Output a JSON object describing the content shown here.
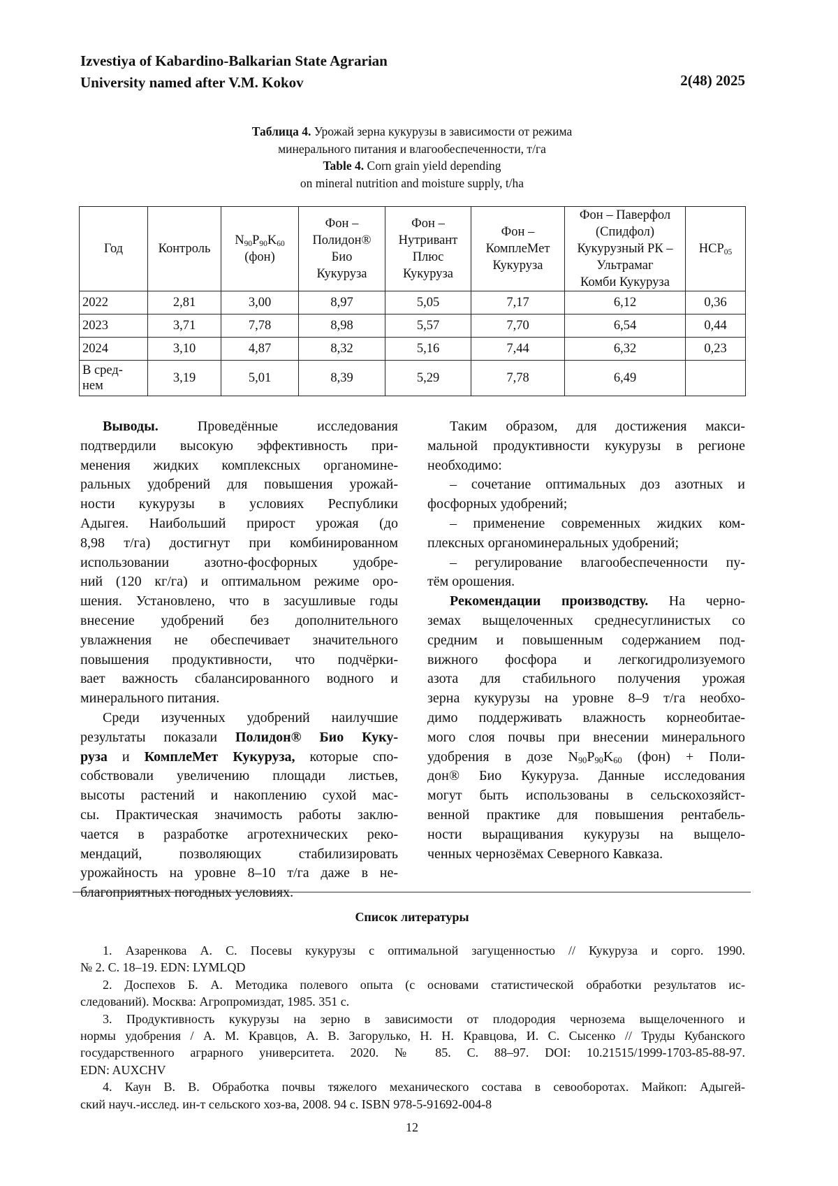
{
  "header": {
    "journal_line1": "Izvestiya of Kabardino-Balkarian State Agrarian",
    "journal_line2": "University named after V.M. Kokov",
    "issue": "2(48) 2025"
  },
  "caption": {
    "lines": [
      [
        {
          "text": "Таблица 4.",
          "style": "bold"
        },
        {
          "text": " Урожай зерна кукурузы в зависимости от режима",
          "style": ""
        }
      ],
      [
        {
          "text": "минерального питания и влагообеспеченности, т/га",
          "style": ""
        }
      ],
      [
        {
          "text": "Table 4.",
          "style": "bold"
        },
        {
          "text": " Corn grain yield depending",
          "style": ""
        }
      ],
      [
        {
          "text": "on mineral nutrition and moisture supply, t/ha",
          "style": ""
        }
      ]
    ]
  },
  "table": {
    "headers": [
      [
        {
          "text": "Год",
          "style": ""
        }
      ],
      [
        {
          "text": "Контроль",
          "style": ""
        }
      ],
      [
        {
          "text": "N",
          "style": ""
        },
        {
          "text": "90",
          "style": "sub"
        },
        {
          "text": "P",
          "style": ""
        },
        {
          "text": "90",
          "style": "sub"
        },
        {
          "text": "K",
          "style": ""
        },
        {
          "text": "60",
          "style": "sub"
        },
        {
          "text": "\n(фон)",
          "style": ""
        }
      ],
      [
        {
          "text": "Фон –\nПолидон®\nБио\nКукуруза",
          "style": ""
        }
      ],
      [
        {
          "text": "Фон –\nНутривант\nПлюс\nКукуруза",
          "style": ""
        }
      ],
      [
        {
          "text": "Фон –\nКомплеМет\nКукуруза",
          "style": ""
        }
      ],
      [
        {
          "text": "Фон – Паверфол\n(Спидфол)\nКукурузный РК –\nУльтрамаг\nКомби Кукуруза",
          "style": ""
        }
      ],
      [
        {
          "text": "НСР",
          "style": ""
        },
        {
          "text": "05",
          "style": "sub"
        }
      ]
    ],
    "rows": [
      [
        "2022",
        "2,81",
        "3,00",
        "8,97",
        "5,05",
        "7,17",
        "6,12",
        "0,36"
      ],
      [
        "2023",
        "3,71",
        "7,78",
        "8,98",
        "5,57",
        "7,70",
        "6,54",
        "0,44"
      ],
      [
        "2024",
        "3,10",
        "4,87",
        "8,32",
        "5,16",
        "7,44",
        "6,32",
        "0,23"
      ],
      [
        "В сред-\nнем",
        "3,19",
        "5,01",
        "8,39",
        "5,29",
        "7,78",
        "6,49",
        ""
      ]
    ]
  },
  "left_column": {
    "paragraphs": [
      {
        "lines": [
          [
            {
              "text": "Выводы.",
              "style": "bold"
            },
            {
              "text": " Проведённые исследования",
              "style": ""
            }
          ],
          [
            {
              "text": "подтвердили высокую эффективность при-",
              "style": ""
            }
          ],
          [
            {
              "text": "менения жидких комплексных органомине-",
              "style": ""
            }
          ],
          [
            {
              "text": "ральных удобрений для повышения урожай-",
              "style": ""
            }
          ],
          [
            {
              "text": "ности кукурузы в условиях Республики",
              "style": ""
            }
          ],
          [
            {
              "text": "Адыгея. Наибольший прирост урожая (до",
              "style": ""
            }
          ],
          [
            {
              "text": "8,98 т/га) достигнут при комбинированном",
              "style": ""
            }
          ],
          [
            {
              "text": "использовании азотно-фосфорных удобре-",
              "style": ""
            }
          ],
          [
            {
              "text": "ний (120 кг/га) и оптимальном режиме оро-",
              "style": ""
            }
          ],
          [
            {
              "text": "шения. Установлено, что в засушливые годы",
              "style": ""
            }
          ],
          [
            {
              "text": "внесение удобрений без дополнительного",
              "style": ""
            }
          ],
          [
            {
              "text": "увлажнения не обеспечивает значительного",
              "style": ""
            }
          ],
          [
            {
              "text": "повышения продуктивности, что подчёрки-",
              "style": ""
            }
          ],
          [
            {
              "text": "вает важность сбалансированного водного и",
              "style": ""
            }
          ],
          [
            {
              "text": "минерального питания.",
              "style": ""
            }
          ]
        ]
      },
      {
        "lines": [
          [
            {
              "text": "Среди изученных удобрений наилучшие",
              "style": ""
            }
          ],
          [
            {
              "text": "результаты показали ",
              "style": ""
            },
            {
              "text": "Полидон® Био Куку-",
              "style": "bold"
            }
          ],
          [
            {
              "text": "руза",
              "style": "bold"
            },
            {
              "text": " и ",
              "style": ""
            },
            {
              "text": "КомплеМет Кукуруза,",
              "style": "bold"
            },
            {
              "text": " которые спо-",
              "style": ""
            }
          ],
          [
            {
              "text": "собствовали увеличению площади листьев,",
              "style": ""
            }
          ],
          [
            {
              "text": "высоты растений и накоплению сухой мас-",
              "style": ""
            }
          ],
          [
            {
              "text": "сы. Практическая значимость работы заклю-",
              "style": ""
            }
          ],
          [
            {
              "text": "чается в разработке агротехнических реко-",
              "style": ""
            }
          ],
          [
            {
              "text": "мендаций, позволяющих стабилизировать",
              "style": ""
            }
          ],
          [
            {
              "text": "урожайность на уровне 8–10 т/га даже в не-",
              "style": ""
            }
          ],
          [
            {
              "text": "благоприятных погодных условиях.",
              "style": ""
            }
          ]
        ]
      }
    ]
  },
  "right_column": {
    "paragraphs": [
      {
        "lines": [
          [
            {
              "text": "Таким образом, для достижения макси-",
              "style": ""
            }
          ],
          [
            {
              "text": "мальной продуктивности кукурузы в регионе",
              "style": ""
            }
          ],
          [
            {
              "text": "необходимо:",
              "style": ""
            }
          ]
        ]
      },
      {
        "lines": [
          [
            {
              "text": "– сочетание оптимальных доз азотных и",
              "style": ""
            }
          ],
          [
            {
              "text": "фосфорных удобрений;",
              "style": ""
            }
          ]
        ]
      },
      {
        "lines": [
          [
            {
              "text": "– применение современных жидких ком-",
              "style": ""
            }
          ],
          [
            {
              "text": "плексных органоминеральных удобрений;",
              "style": ""
            }
          ]
        ]
      },
      {
        "lines": [
          [
            {
              "text": "– регулирование влагообеспеченности пу-",
              "style": ""
            }
          ],
          [
            {
              "text": "тём орошения.",
              "style": ""
            }
          ]
        ]
      },
      {
        "lines": [
          [
            {
              "text": "Рекомендации производству.",
              "style": "bold"
            },
            {
              "text": " На черно-",
              "style": ""
            }
          ],
          [
            {
              "text": "земах выщелоченных среднесуглинистых со",
              "style": ""
            }
          ],
          [
            {
              "text": "средним и повышенным содержанием под-",
              "style": ""
            }
          ],
          [
            {
              "text": "вижного фосфора и легкогидролизуемого",
              "style": ""
            }
          ],
          [
            {
              "text": "азота для стабильного получения урожая",
              "style": ""
            }
          ],
          [
            {
              "text": "зерна кукурузы на уровне 8–9 т/га необхо-",
              "style": ""
            }
          ],
          [
            {
              "text": "димо поддерживать влажность корнеобитае-",
              "style": ""
            }
          ],
          [
            {
              "text": "мого слоя почвы при внесении минерального",
              "style": ""
            }
          ],
          [
            {
              "text": "удобрения в дозе N",
              "style": ""
            },
            {
              "text": "90",
              "style": "sub"
            },
            {
              "text": "P",
              "style": ""
            },
            {
              "text": "90",
              "style": "sub"
            },
            {
              "text": "K",
              "style": ""
            },
            {
              "text": "60",
              "style": "sub"
            },
            {
              "text": " (фон) + Поли-",
              "style": ""
            }
          ],
          [
            {
              "text": "дон® Био Кукуруза. Данные исследования",
              "style": ""
            }
          ],
          [
            {
              "text": "могут быть использованы в сельскохозяйст-",
              "style": ""
            }
          ],
          [
            {
              "text": "венной практике для повышения рентабель-",
              "style": ""
            }
          ],
          [
            {
              "text": "ности выращивания кукурузы на выщело-",
              "style": ""
            }
          ],
          [
            {
              "text": "ченных чернозёмах Северного Кавказа.",
              "style": ""
            }
          ]
        ]
      }
    ]
  },
  "references": {
    "title": "Список литературы",
    "paragraphs": [
      {
        "lines": [
          [
            {
              "text": "1.  Азаренкова А. С. Посевы кукурузы с оптимальной загущенностью // Кукуруза и сорго. 1990.",
              "style": ""
            }
          ],
          [
            {
              "text": "№ 2. С. 18–19. EDN: LYMLQD",
              "style": ""
            }
          ]
        ]
      },
      {
        "lines": [
          [
            {
              "text": "2.  Доспехов Б. А. Методика полевого опыта (с основами статистической обработки результатов ис-",
              "style": ""
            }
          ],
          [
            {
              "text": "следований). Москва: Агропромиздат, 1985. 351 с.",
              "style": ""
            }
          ]
        ]
      },
      {
        "lines": [
          [
            {
              "text": "3.  Продуктивность кукурузы на зерно в зависимости от плодородия чернозема выщелоченного и",
              "style": ""
            }
          ],
          [
            {
              "text": "нормы удобрения / А. М. Кравцов, А. В. Загорулько, Н. Н. Кравцова, И. С. Сысенко // Труды Кубанского",
              "style": ""
            }
          ],
          [
            {
              "text": "государственного аграрного университета. 2020. № 85. С. 88–97. DOI: 10.21515/1999-1703-85-88-97.",
              "style": ""
            }
          ],
          [
            {
              "text": "EDN: AUXCHV",
              "style": ""
            }
          ]
        ]
      },
      {
        "lines": [
          [
            {
              "text": "4.  Каун В. В. Обработка почвы тяжелого механического состава в севооборотах. Майкоп: Адыгей-",
              "style": ""
            }
          ],
          [
            {
              "text": "ский науч.-исслед. ин-т сельского хоз-ва, 2008. 94 с. ISBN 978-5-91692-004-8",
              "style": ""
            }
          ]
        ]
      }
    ]
  },
  "page_number": "12"
}
